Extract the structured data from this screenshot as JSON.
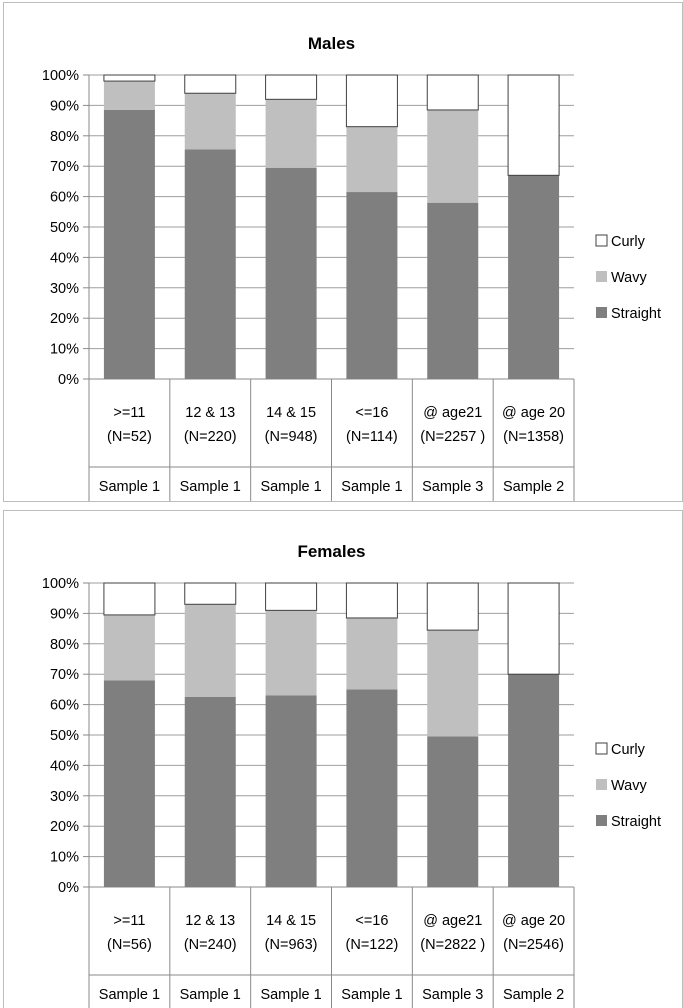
{
  "colors": {
    "Straight": "#7f7f7f",
    "Wavy": "#bfbfbf",
    "Curly": "#ffffff"
  },
  "chart_data": [
    {
      "type": "bar",
      "stacked": true,
      "percent": true,
      "title": "Males",
      "categories": [
        ">=11 (N=52)",
        "12 & 13 (N=220)",
        "14 & 15 (N=948)",
        "<=16 (N=114)",
        "@ age21 (N=2257 )",
        "@ age 20 (N=1358)"
      ],
      "category_lines": [
        [
          ">=11",
          "(N=52)"
        ],
        [
          "12 & 13",
          "(N=220)"
        ],
        [
          "14 & 15",
          "(N=948)"
        ],
        [
          "<=16",
          "(N=114)"
        ],
        [
          "@ age21",
          "(N=2257 )"
        ],
        [
          "@ age 20",
          "(N=1358)"
        ]
      ],
      "groups": [
        "Sample 1",
        "Sample 1",
        "Sample 1",
        "Sample 1",
        "Sample 3",
        "Sample 2"
      ],
      "series": [
        {
          "name": "Straight",
          "values": [
            88.5,
            75.5,
            69.5,
            61.5,
            58.0,
            67.0
          ]
        },
        {
          "name": "Wavy",
          "values": [
            9.5,
            18.5,
            22.5,
            21.5,
            30.5,
            0.0
          ]
        },
        {
          "name": "Curly",
          "values": [
            2.0,
            6.0,
            8.0,
            17.0,
            11.5,
            33.0
          ]
        }
      ],
      "ylim": [
        0,
        100
      ],
      "yticks": [
        "0%",
        "10%",
        "20%",
        "30%",
        "40%",
        "50%",
        "60%",
        "70%",
        "80%",
        "90%",
        "100%"
      ],
      "legend": [
        "Curly",
        "Wavy",
        "Straight"
      ],
      "legend_position": "right",
      "grid": true
    },
    {
      "type": "bar",
      "stacked": true,
      "percent": true,
      "title": "Females",
      "categories": [
        ">=11 (N=56)",
        "12 & 13 (N=240)",
        "14 & 15 (N=963)",
        "<=16 (N=122)",
        "@ age21 (N=2822 )",
        "@ age 20 (N=2546)"
      ],
      "category_lines": [
        [
          ">=11",
          "(N=56)"
        ],
        [
          "12 & 13",
          "(N=240)"
        ],
        [
          "14 & 15",
          "(N=963)"
        ],
        [
          "<=16",
          "(N=122)"
        ],
        [
          "@ age21",
          "(N=2822 )"
        ],
        [
          "@ age 20",
          "(N=2546)"
        ]
      ],
      "groups": [
        "Sample 1",
        "Sample 1",
        "Sample 1",
        "Sample 1",
        "Sample 3",
        "Sample 2"
      ],
      "series": [
        {
          "name": "Straight",
          "values": [
            68.0,
            62.5,
            63.0,
            65.0,
            49.5,
            70.0
          ]
        },
        {
          "name": "Wavy",
          "values": [
            21.5,
            30.5,
            28.0,
            23.5,
            35.0,
            0.0
          ]
        },
        {
          "name": "Curly",
          "values": [
            10.5,
            7.0,
            9.0,
            11.5,
            15.5,
            30.0
          ]
        }
      ],
      "ylim": [
        0,
        100
      ],
      "yticks": [
        "0%",
        "10%",
        "20%",
        "30%",
        "40%",
        "50%",
        "60%",
        "70%",
        "80%",
        "90%",
        "100%"
      ],
      "legend": [
        "Curly",
        "Wavy",
        "Straight"
      ],
      "legend_position": "right",
      "grid": true
    }
  ]
}
